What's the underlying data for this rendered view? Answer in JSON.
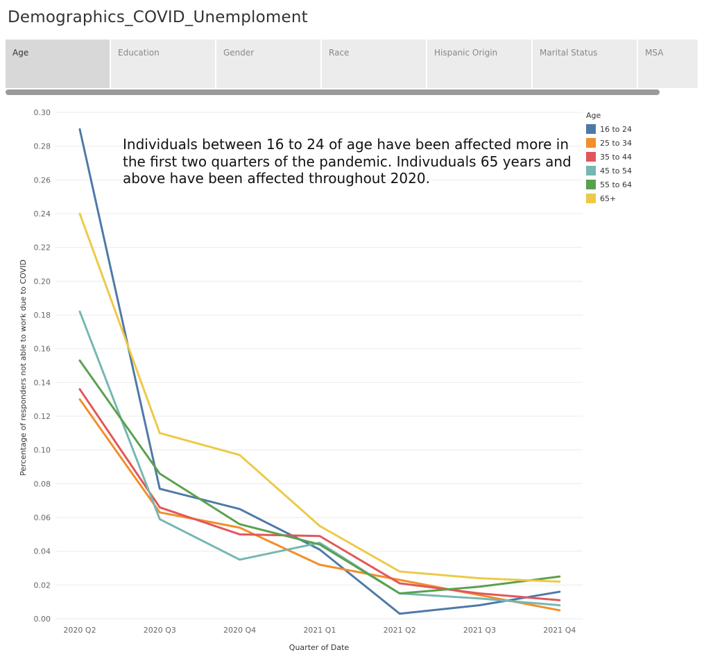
{
  "page": {
    "title": "Demographics_COVID_Unemploment"
  },
  "tabs": [
    {
      "label": "Age",
      "active": true
    },
    {
      "label": "Education",
      "active": false
    },
    {
      "label": "Gender",
      "active": false
    },
    {
      "label": "Race",
      "active": false
    },
    {
      "label": "Hispanic Origin",
      "active": false
    },
    {
      "label": "Marital Status",
      "active": false
    },
    {
      "label": "MSA",
      "active": false
    }
  ],
  "annotation": "Individuals between 16 to 24 of age have been affected more in the first two quarters of the pandemic. Indivuduals 65 years and above have been affected throughout 2020.",
  "chart_data": {
    "type": "line",
    "xlabel": "Quarter of Date",
    "ylabel": "Percentage of responders not able to work due to COVID",
    "categories": [
      "2020 Q2",
      "2020 Q3",
      "2020 Q4",
      "2021 Q1",
      "2021 Q2",
      "2021 Q3",
      "2021 Q4"
    ],
    "ylim": [
      0,
      0.3
    ],
    "yticks": [
      "0.00",
      "0.02",
      "0.04",
      "0.06",
      "0.08",
      "0.10",
      "0.12",
      "0.14",
      "0.16",
      "0.18",
      "0.20",
      "0.22",
      "0.24",
      "0.26",
      "0.28",
      "0.30"
    ],
    "legend_title": "Age",
    "legend_position": "right",
    "grid": true,
    "series": [
      {
        "name": "16 to 24",
        "color": "#4e79a7",
        "values": [
          0.29,
          0.077,
          0.065,
          0.041,
          0.003,
          0.008,
          0.016
        ]
      },
      {
        "name": "25 to 34",
        "color": "#f28e2b",
        "values": [
          0.13,
          0.063,
          0.054,
          0.032,
          0.023,
          0.014,
          0.005
        ]
      },
      {
        "name": "35 to 44",
        "color": "#e15759",
        "values": [
          0.136,
          0.066,
          0.05,
          0.049,
          0.021,
          0.015,
          0.011
        ]
      },
      {
        "name": "45 to 54",
        "color": "#76b7b2",
        "values": [
          0.182,
          0.059,
          0.035,
          0.045,
          0.015,
          0.012,
          0.008
        ]
      },
      {
        "name": "55 to 64",
        "color": "#59a14f",
        "values": [
          0.153,
          0.086,
          0.056,
          0.044,
          0.015,
          0.019,
          0.025
        ]
      },
      {
        "name": "65+",
        "color": "#edc948",
        "values": [
          0.24,
          0.11,
          0.097,
          0.055,
          0.028,
          0.024,
          0.022
        ]
      }
    ]
  }
}
